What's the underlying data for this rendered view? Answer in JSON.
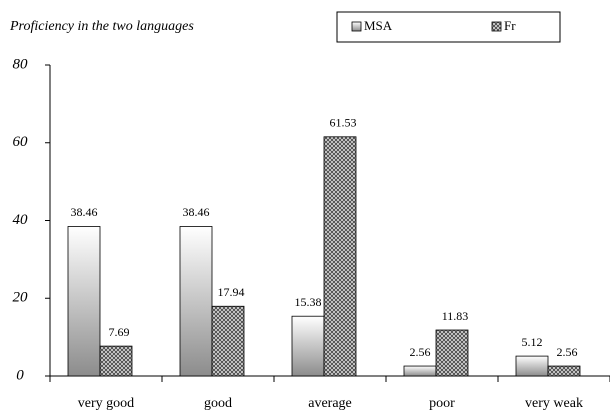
{
  "chart_data": {
    "type": "bar",
    "title": "Proficiency in the two languages",
    "categories": [
      "very good",
      "good",
      "average",
      "poor",
      "very weak"
    ],
    "series": [
      {
        "name": "MSA",
        "color": "#8c8c8c",
        "values": [
          38.46,
          38.46,
          15.38,
          2.56,
          5.12
        ]
      },
      {
        "name": "Fr",
        "color": "#555555",
        "values": [
          7.69,
          17.94,
          61.53,
          11.83,
          2.56
        ]
      }
    ],
    "ylim": [
      0,
      80
    ],
    "yticks": [
      0,
      20,
      40,
      60,
      80
    ],
    "grid": false,
    "legend": "top"
  }
}
